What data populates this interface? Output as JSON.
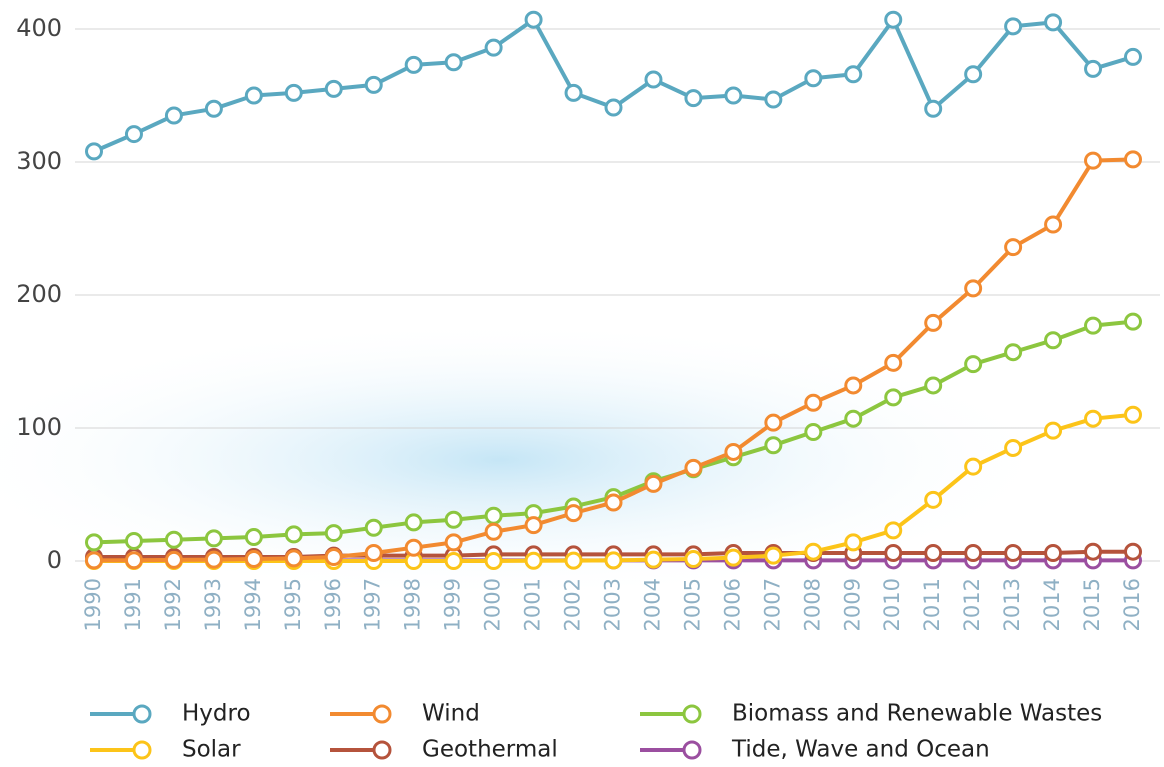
{
  "chart_data": {
    "type": "line",
    "categories": [
      "1990",
      "1991",
      "1992",
      "1993",
      "1994",
      "1995",
      "1996",
      "1997",
      "1998",
      "1999",
      "2000",
      "2001",
      "2002",
      "2003",
      "2004",
      "2005",
      "2006",
      "2007",
      "2008",
      "2009",
      "2010",
      "2011",
      "2012",
      "2013",
      "2014",
      "2015",
      "2016"
    ],
    "series": [
      {
        "name": "Hydro",
        "color": "#5aa8c0",
        "values": [
          308,
          321,
          335,
          340,
          350,
          352,
          355,
          358,
          373,
          375,
          386,
          407,
          352,
          341,
          362,
          348,
          350,
          347,
          363,
          366,
          407,
          340,
          366,
          402,
          405,
          370,
          379
        ]
      },
      {
        "name": "Wind",
        "color": "#f28a30",
        "values": [
          0.5,
          0.6,
          0.8,
          1,
          1.5,
          2,
          3,
          6,
          10,
          14,
          22,
          27,
          36,
          44,
          58,
          70,
          82,
          104,
          119,
          132,
          149,
          179,
          205,
          236,
          253,
          301,
          302
        ]
      },
      {
        "name": "Biomass and Renewable Wastes",
        "color": "#8cc63f",
        "values": [
          14,
          15,
          16,
          17,
          18,
          20,
          21,
          25,
          29,
          31,
          34,
          36,
          41,
          48,
          60,
          69,
          78,
          87,
          97,
          107,
          123,
          132,
          148,
          157,
          166,
          177,
          180
        ]
      },
      {
        "name": "Solar",
        "color": "#fcc419",
        "values": [
          0,
          0,
          0,
          0,
          0,
          0,
          0,
          0,
          0,
          0,
          0,
          0.2,
          0.3,
          0.5,
          1,
          1.5,
          2.5,
          4,
          7,
          14,
          23,
          46,
          71,
          85,
          98,
          107,
          110
        ]
      },
      {
        "name": "Geothermal",
        "color": "#b5533c",
        "values": [
          3,
          3,
          3,
          3,
          3,
          3,
          4,
          4,
          4,
          4,
          5,
          5,
          5,
          5,
          5,
          5,
          6,
          6,
          6,
          6,
          6,
          6,
          6,
          6,
          6,
          7,
          7
        ]
      },
      {
        "name": "Tide, Wave and Ocean",
        "color": "#9b4fa0",
        "values": [
          0.5,
          0.5,
          0.5,
          0.5,
          0.5,
          0.5,
          0.5,
          0.5,
          0.5,
          0.5,
          0.5,
          0.5,
          0.5,
          0.5,
          0.5,
          0.5,
          0.5,
          0.5,
          0.5,
          0.5,
          0.5,
          0.5,
          0.5,
          0.5,
          0.5,
          0.5,
          0.5
        ]
      }
    ],
    "ylim": [
      0,
      400
    ],
    "yticks": [
      0,
      100,
      200,
      300,
      400
    ],
    "grid": true
  }
}
